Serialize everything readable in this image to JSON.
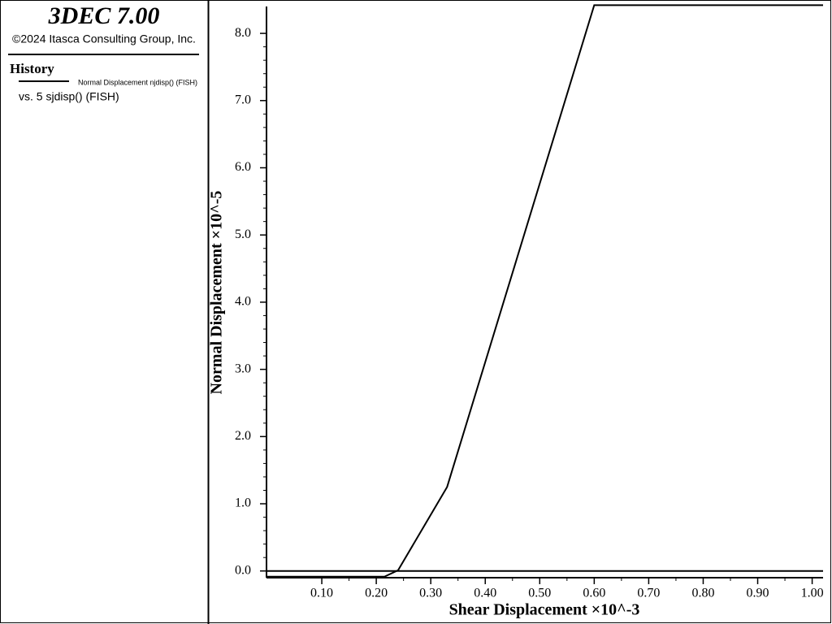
{
  "header": {
    "title": "3DEC 7.00",
    "copyright": "©2024 Itasca Consulting Group, Inc.",
    "section": "History",
    "legend_line1": "Normal Displacement njdisp() (FISH)",
    "legend_line2": "vs. 5 sjdisp() (FISH)"
  },
  "chart_data": {
    "type": "line",
    "x_label": "Shear Displacement ×10^-3",
    "y_label": "Normal Displacement ×10^-5",
    "series": [
      {
        "name": "Normal Displacement njdisp() (FISH)",
        "color": "#000000",
        "x": [
          0,
          0.215,
          0.24,
          0.33,
          0.6,
          1.02
        ],
        "values": [
          -0.085,
          -0.085,
          0.01,
          1.25,
          8.42,
          8.42
        ]
      }
    ],
    "xlim": [
      0,
      1.02
    ],
    "ylim": [
      -0.1,
      8.4
    ],
    "xticks": [
      {
        "value": 0.1,
        "label": "0.10"
      },
      {
        "value": 0.2,
        "label": "0.20"
      },
      {
        "value": 0.3,
        "label": "0.30"
      },
      {
        "value": 0.4,
        "label": "0.40"
      },
      {
        "value": 0.5,
        "label": "0.50"
      },
      {
        "value": 0.6,
        "label": "0.60"
      },
      {
        "value": 0.7,
        "label": "0.70"
      },
      {
        "value": 0.8,
        "label": "0.80"
      },
      {
        "value": 0.9,
        "label": "0.90"
      },
      {
        "value": 1.0,
        "label": "1.00"
      }
    ],
    "yticks": [
      {
        "value": 0,
        "label": "0.0"
      },
      {
        "value": 1,
        "label": "1.0"
      },
      {
        "value": 2,
        "label": "2.0"
      },
      {
        "value": 3,
        "label": "3.0"
      },
      {
        "value": 4,
        "label": "4.0"
      },
      {
        "value": 5,
        "label": "5.0"
      },
      {
        "value": 6,
        "label": "6.0"
      },
      {
        "value": 7,
        "label": "7.0"
      },
      {
        "value": 8,
        "label": "8.0"
      }
    ]
  }
}
